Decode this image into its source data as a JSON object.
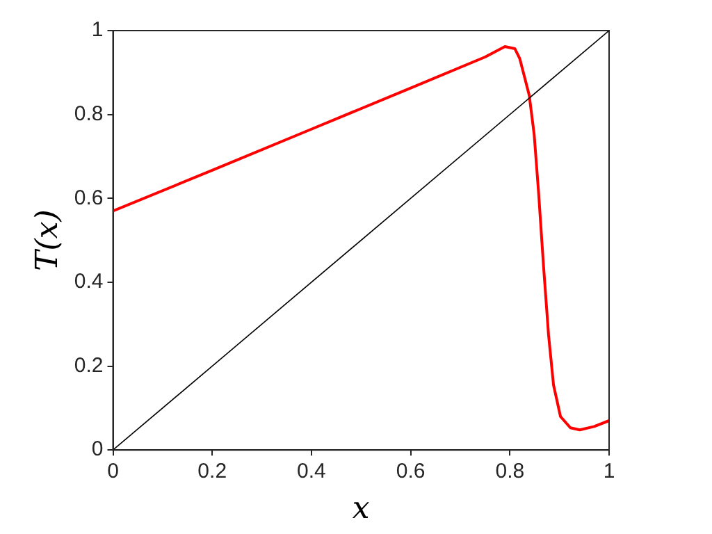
{
  "chart_data": {
    "type": "line",
    "xlabel": "x",
    "ylabel": "T(x)",
    "xlim": [
      0,
      1
    ],
    "ylim": [
      0,
      1
    ],
    "xticks": [
      0,
      0.2,
      0.4,
      0.6,
      0.8,
      1
    ],
    "yticks": [
      0,
      0.2,
      0.4,
      0.6,
      0.8,
      1
    ],
    "grid": false,
    "legend": false,
    "marker": "none",
    "line_style": "solid",
    "series": [
      {
        "color": "#000000",
        "x": [
          0,
          1
        ],
        "values": [
          0,
          1
        ]
      },
      {
        "color": "#ff0000",
        "x": [
          0,
          0.2,
          0.4,
          0.6,
          0.75,
          0.79,
          0.81,
          0.82,
          0.829,
          0.839,
          0.849,
          0.858,
          0.868,
          0.878,
          0.888,
          0.902,
          0.922,
          0.941,
          0.97,
          1
        ],
        "values": [
          0.57,
          0.667,
          0.765,
          0.863,
          0.937,
          0.962,
          0.957,
          0.933,
          0.892,
          0.846,
          0.752,
          0.612,
          0.436,
          0.274,
          0.155,
          0.08,
          0.053,
          0.048,
          0.056,
          0.07
        ]
      }
    ]
  }
}
